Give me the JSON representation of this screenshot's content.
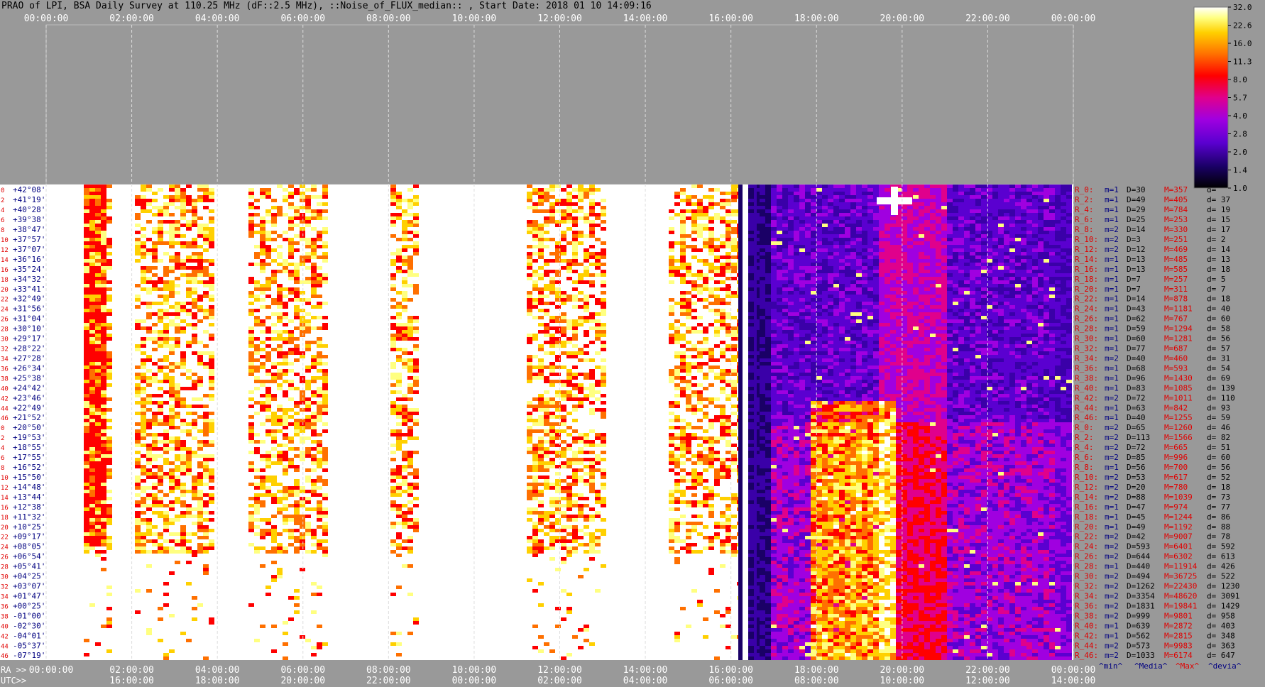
{
  "title": "PRAO of LPI, BSA Daily Survey at 110.25 MHz (dF::2.5 MHz), ::Noise_of_FLUX_median:: , Start Date: 2018 01 10 14:09:16",
  "chart_data": {
    "type": "heatmap",
    "title": "PRAO of LPI, BSA Daily Survey at 110.25 MHz (dF::2.5 MHz), ::Noise_of_FLUX_median:: , Start Date: 2018 01 10 14:09:16",
    "top_axis_ticks": [
      "00:00:00",
      "02:00:00",
      "04:00:00",
      "06:00:00",
      "08:00:00",
      "10:00:00",
      "12:00:00",
      "14:00:00",
      "16:00:00",
      "18:00:00",
      "20:00:00",
      "22:00:00",
      "00:00:00"
    ],
    "ra_prefix": "RA >>",
    "ra_ticks": [
      "00:00:00",
      "02:00:00",
      "04:00:00",
      "06:00:00",
      "08:00:00",
      "10:00:00",
      "12:00:00",
      "14:00:00",
      "16:00:00",
      "18:00:00",
      "20:00:00",
      "22:00:00",
      "00:00:00"
    ],
    "utc_prefix": "UTC>>",
    "utc_ticks": [
      "16:00:00",
      "18:00:00",
      "20:00:00",
      "22:00:00",
      "00:00:00",
      "02:00:00",
      "04:00:00",
      "06:00:00",
      "08:00:00",
      "10:00:00",
      "12:00:00",
      "14:00:00"
    ],
    "declination_rows": [
      {
        "idx": "0",
        "dec": "+42°08'"
      },
      {
        "idx": "2",
        "dec": "+41°19'"
      },
      {
        "idx": "4",
        "dec": "+40°28'"
      },
      {
        "idx": "6",
        "dec": "+39°38'"
      },
      {
        "idx": "8",
        "dec": "+38°47'"
      },
      {
        "idx": "10",
        "dec": "+37°57'"
      },
      {
        "idx": "12",
        "dec": "+37°07'"
      },
      {
        "idx": "14",
        "dec": "+36°16'"
      },
      {
        "idx": "16",
        "dec": "+35°24'"
      },
      {
        "idx": "18",
        "dec": "+34°32'"
      },
      {
        "idx": "20",
        "dec": "+33°41'"
      },
      {
        "idx": "22",
        "dec": "+32°49'"
      },
      {
        "idx": "24",
        "dec": "+31°56'"
      },
      {
        "idx": "26",
        "dec": "+31°04'"
      },
      {
        "idx": "28",
        "dec": "+30°10'"
      },
      {
        "idx": "30",
        "dec": "+29°17'"
      },
      {
        "idx": "32",
        "dec": "+28°22'"
      },
      {
        "idx": "34",
        "dec": "+27°28'"
      },
      {
        "idx": "36",
        "dec": "+26°34'"
      },
      {
        "idx": "38",
        "dec": "+25°38'"
      },
      {
        "idx": "40",
        "dec": "+24°42'"
      },
      {
        "idx": "42",
        "dec": "+23°46'"
      },
      {
        "idx": "44",
        "dec": "+22°49'"
      },
      {
        "idx": "46",
        "dec": "+21°52'"
      },
      {
        "idx": "0",
        "dec": "+20°50'"
      },
      {
        "idx": "2",
        "dec": "+19°53'"
      },
      {
        "idx": "4",
        "dec": "+18°55'"
      },
      {
        "idx": "6",
        "dec": "+17°55'"
      },
      {
        "idx": "8",
        "dec": "+16°52'"
      },
      {
        "idx": "10",
        "dec": "+15°50'"
      },
      {
        "idx": "12",
        "dec": "+14°48'"
      },
      {
        "idx": "14",
        "dec": "+13°44'"
      },
      {
        "idx": "16",
        "dec": "+12°38'"
      },
      {
        "idx": "18",
        "dec": "+11°32'"
      },
      {
        "idx": "20",
        "dec": "+10°25'"
      },
      {
        "idx": "22",
        "dec": "+09°17'"
      },
      {
        "idx": "24",
        "dec": "+08°05'"
      },
      {
        "idx": "26",
        "dec": "+06°54'"
      },
      {
        "idx": "28",
        "dec": "+05°41'"
      },
      {
        "idx": "30",
        "dec": "+04°25'"
      },
      {
        "idx": "32",
        "dec": "+03°07'"
      },
      {
        "idx": "34",
        "dec": "+01°47'"
      },
      {
        "idx": "36",
        "dec": "+00°25'"
      },
      {
        "idx": "38",
        "dec": "-01°00'"
      },
      {
        "idx": "40",
        "dec": "-02°30'"
      },
      {
        "idx": "42",
        "dec": "-04°01'"
      },
      {
        "idx": "44",
        "dec": "-05°37'"
      },
      {
        "idx": "46",
        "dec": "-07°19'"
      }
    ],
    "row_stats": [
      {
        "r": "R_0:",
        "m": "m=1",
        "D": "D=30",
        "M": "M=357",
        "d": "d="
      },
      {
        "r": "R_2:",
        "m": "m=1",
        "D": "D=49",
        "M": "M=405",
        "d": "d= 37"
      },
      {
        "r": "R_4:",
        "m": "m=1",
        "D": "D=29",
        "M": "M=784",
        "d": "d= 19"
      },
      {
        "r": "R_6:",
        "m": "m=1",
        "D": "D=25",
        "M": "M=253",
        "d": "d= 15"
      },
      {
        "r": "R_8:",
        "m": "m=2",
        "D": "D=14",
        "M": "M=330",
        "d": "d= 17"
      },
      {
        "r": "R_10:",
        "m": "m=2",
        "D": "D=3",
        "M": "M=251",
        "d": "d= 2"
      },
      {
        "r": "R_12:",
        "m": "m=2",
        "D": "D=12",
        "M": "M=469",
        "d": "d= 14"
      },
      {
        "r": "R_14:",
        "m": "m=1",
        "D": "D=13",
        "M": "M=485",
        "d": "d= 13"
      },
      {
        "r": "R_16:",
        "m": "m=1",
        "D": "D=13",
        "M": "M=585",
        "d": "d= 18"
      },
      {
        "r": "R_18:",
        "m": "m=1",
        "D": "D=7",
        "M": "M=257",
        "d": "d= 5"
      },
      {
        "r": "R_20:",
        "m": "m=1",
        "D": "D=7",
        "M": "M=311",
        "d": "d= 7"
      },
      {
        "r": "R_22:",
        "m": "m=1",
        "D": "D=14",
        "M": "M=878",
        "d": "d= 18"
      },
      {
        "r": "R_24:",
        "m": "m=1",
        "D": "D=43",
        "M": "M=1181",
        "d": "d= 40"
      },
      {
        "r": "R_26:",
        "m": "m=1",
        "D": "D=62",
        "M": "M=767",
        "d": "d= 60"
      },
      {
        "r": "R_28:",
        "m": "m=1",
        "D": "D=59",
        "M": "M=1294",
        "d": "d= 58"
      },
      {
        "r": "R_30:",
        "m": "m=1",
        "D": "D=60",
        "M": "M=1281",
        "d": "d= 56"
      },
      {
        "r": "R_32:",
        "m": "m=1",
        "D": "D=77",
        "M": "M=687",
        "d": "d= 57"
      },
      {
        "r": "R_34:",
        "m": "m=2",
        "D": "D=40",
        "M": "M=460",
        "d": "d= 31"
      },
      {
        "r": "R_36:",
        "m": "m=1",
        "D": "D=68",
        "M": "M=593",
        "d": "d= 54"
      },
      {
        "r": "R_38:",
        "m": "m=1",
        "D": "D=96",
        "M": "M=1430",
        "d": "d= 69"
      },
      {
        "r": "R_40:",
        "m": "m=1",
        "D": "D=83",
        "M": "M=1085",
        "d": "d= 139"
      },
      {
        "r": "R_42:",
        "m": "m=2",
        "D": "D=72",
        "M": "M=1011",
        "d": "d= 110"
      },
      {
        "r": "R_44:",
        "m": "m=1",
        "D": "D=63",
        "M": "M=842",
        "d": "d= 93"
      },
      {
        "r": "R_46:",
        "m": "m=1",
        "D": "D=40",
        "M": "M=1255",
        "d": "d= 59"
      },
      {
        "r": "R_0:",
        "m": "m=2",
        "D": "D=65",
        "M": "M=1260",
        "d": "d= 46"
      },
      {
        "r": "R_2:",
        "m": "m=2",
        "D": "D=113",
        "M": "M=1566",
        "d": "d= 82"
      },
      {
        "r": "R_4:",
        "m": "m=2",
        "D": "D=72",
        "M": "M=665",
        "d": "d= 51"
      },
      {
        "r": "R_6:",
        "m": "m=2",
        "D": "D=85",
        "M": "M=996",
        "d": "d= 60"
      },
      {
        "r": "R_8:",
        "m": "m=1",
        "D": "D=56",
        "M": "M=700",
        "d": "d= 56"
      },
      {
        "r": "R_10:",
        "m": "m=2",
        "D": "D=53",
        "M": "M=617",
        "d": "d= 52"
      },
      {
        "r": "R_12:",
        "m": "m=2",
        "D": "D=20",
        "M": "M=780",
        "d": "d= 18"
      },
      {
        "r": "R_14:",
        "m": "m=2",
        "D": "D=88",
        "M": "M=1039",
        "d": "d= 73"
      },
      {
        "r": "R_16:",
        "m": "m=1",
        "D": "D=47",
        "M": "M=974",
        "d": "d= 77"
      },
      {
        "r": "R_18:",
        "m": "m=1",
        "D": "D=45",
        "M": "M=1244",
        "d": "d= 86"
      },
      {
        "r": "R_20:",
        "m": "m=1",
        "D": "D=49",
        "M": "M=1192",
        "d": "d= 88"
      },
      {
        "r": "R_22:",
        "m": "m=2",
        "D": "D=42",
        "M": "M=9007",
        "d": "d= 78"
      },
      {
        "r": "R_24:",
        "m": "m=2",
        "D": "D=593",
        "M": "M=6401",
        "d": "d= 592"
      },
      {
        "r": "R_26:",
        "m": "m=2",
        "D": "D=644",
        "M": "M=6302",
        "d": "d= 613"
      },
      {
        "r": "R_28:",
        "m": "m=1",
        "D": "D=440",
        "M": "M=11914",
        "d": "d= 426"
      },
      {
        "r": "R_30:",
        "m": "m=2",
        "D": "D=494",
        "M": "M=36725",
        "d": "d= 522"
      },
      {
        "r": "R_32:",
        "m": "m=2",
        "D": "D=1262",
        "M": "M=22430",
        "d": "d= 1230"
      },
      {
        "r": "R_34:",
        "m": "m=2",
        "D": "D=3354",
        "M": "M=48620",
        "d": "d= 3091"
      },
      {
        "r": "R_36:",
        "m": "m=2",
        "D": "D=1831",
        "M": "M=19841",
        "d": "d= 1429"
      },
      {
        "r": "R_38:",
        "m": "m=2",
        "D": "D=999",
        "M": "M=9801",
        "d": "d= 958"
      },
      {
        "r": "R_40:",
        "m": "m=1",
        "D": "D=639",
        "M": "M=2872",
        "d": "d= 403"
      },
      {
        "r": "R_42:",
        "m": "m=1",
        "D": "D=562",
        "M": "M=2815",
        "d": "d= 348"
      },
      {
        "r": "R_44:",
        "m": "m=2",
        "D": "D=573",
        "M": "M=9983",
        "d": "d= 363"
      },
      {
        "r": "R_46:",
        "m": "m=2",
        "D": "D=1033",
        "M": "M=6174",
        "d": "d= 647"
      }
    ],
    "stats_footer": [
      "^min^",
      "^Media^",
      "^Max^",
      "^devia^"
    ],
    "colorbar": {
      "ticks": [
        "32.0",
        "22.6",
        "16.0",
        "11.3",
        "8.0",
        "5.7",
        "4.0",
        "2.8",
        "2.0",
        "1.4",
        "1.0"
      ],
      "scale": "log",
      "range": [
        1.0,
        32.0
      ]
    },
    "colors": {
      "background": "#999999",
      "saturated": "#ffffff",
      "label_red": "#e00000",
      "label_navy": "#000080",
      "colormap": [
        "#000000",
        "#1a0066",
        "#5a00d0",
        "#a000e0",
        "#e0008c",
        "#ff0000",
        "#ff7000",
        "#ffd000",
        "#ffff80",
        "#ffffff"
      ]
    }
  }
}
